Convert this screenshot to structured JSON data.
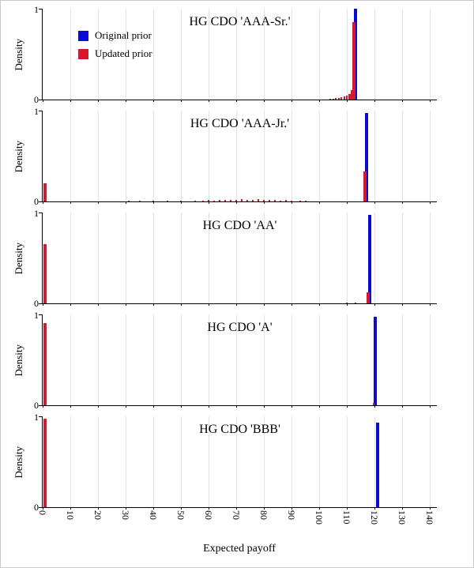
{
  "figure": {
    "ylabel": "Density",
    "xlabel": "Expected payoff",
    "background": "#ffffff",
    "axis_color": "#000000",
    "grid_color": "#e2e2e2",
    "legend": {
      "items": [
        {
          "label": "Original prior",
          "color": "#0a0ad2"
        },
        {
          "label": "Updated prior",
          "color": "#d7182a"
        }
      ]
    }
  },
  "chart_data": {
    "type": "bar",
    "subtype": "density-spike-histogram",
    "xlabel": "Expected payoff",
    "ylabel": "Density",
    "xlim": [
      0,
      140
    ],
    "ylim": [
      0,
      1
    ],
    "x_ticks": [
      0,
      10,
      20,
      30,
      40,
      50,
      60,
      70,
      80,
      90,
      100,
      110,
      120,
      130,
      140
    ],
    "y_ticks": [
      0,
      1
    ],
    "grid": "vertical",
    "legend_position": "top-left-first-panel",
    "panels": [
      {
        "title": "HG CDO 'AAA-Sr.'",
        "show_legend": true,
        "series": [
          {
            "name": "Original prior",
            "color": "#0a0ad2",
            "points": [
              [
                113.2,
                1.0
              ]
            ]
          },
          {
            "name": "Updated prior",
            "color": "#d7182a",
            "points": [
              [
                104,
                0.01
              ],
              [
                105,
                0.012
              ],
              [
                106,
                0.015
              ],
              [
                107,
                0.02
              ],
              [
                108,
                0.025
              ],
              [
                109,
                0.032
              ],
              [
                110,
                0.042
              ],
              [
                111,
                0.06
              ],
              [
                112,
                0.1
              ],
              [
                112.6,
                0.85
              ]
            ]
          }
        ]
      },
      {
        "title": "HG CDO 'AAA-Jr.'",
        "show_legend": false,
        "series": [
          {
            "name": "Original prior",
            "color": "#0a0ad2",
            "points": [
              [
                117.2,
                0.97
              ]
            ]
          },
          {
            "name": "Updated prior",
            "color": "#d7182a",
            "points": [
              [
                0.8,
                0.2
              ],
              [
                31,
                0.008
              ],
              [
                35,
                0.006
              ],
              [
                40,
                0.008
              ],
              [
                45,
                0.01
              ],
              [
                50,
                0.008
              ],
              [
                55,
                0.012
              ],
              [
                58,
                0.01
              ],
              [
                60,
                0.015
              ],
              [
                62,
                0.012
              ],
              [
                64,
                0.018
              ],
              [
                66,
                0.015
              ],
              [
                68,
                0.02
              ],
              [
                70,
                0.018
              ],
              [
                72,
                0.022
              ],
              [
                74,
                0.02
              ],
              [
                76,
                0.018
              ],
              [
                78,
                0.022
              ],
              [
                80,
                0.02
              ],
              [
                82,
                0.018
              ],
              [
                84,
                0.015
              ],
              [
                86,
                0.012
              ],
              [
                88,
                0.015
              ],
              [
                90,
                0.01
              ],
              [
                93,
                0.008
              ],
              [
                95,
                0.006
              ],
              [
                116.5,
                0.33
              ]
            ]
          }
        ]
      },
      {
        "title": "HG CDO 'AA'",
        "show_legend": false,
        "series": [
          {
            "name": "Original prior",
            "color": "#0a0ad2",
            "points": [
              [
                118.2,
                0.97
              ]
            ]
          },
          {
            "name": "Updated prior",
            "color": "#d7182a",
            "points": [
              [
                0.8,
                0.65
              ],
              [
                110,
                0.006
              ],
              [
                113,
                0.008
              ],
              [
                117.6,
                0.12
              ]
            ]
          }
        ]
      },
      {
        "title": "HG CDO 'A'",
        "show_legend": false,
        "series": [
          {
            "name": "Original prior",
            "color": "#0a0ad2",
            "points": [
              [
                120.2,
                0.97
              ]
            ]
          },
          {
            "name": "Updated prior",
            "color": "#d7182a",
            "points": [
              [
                0.8,
                0.9
              ],
              [
                119.6,
                0.03
              ]
            ]
          }
        ]
      },
      {
        "title": "HG CDO 'BBB'",
        "show_legend": false,
        "series": [
          {
            "name": "Original prior",
            "color": "#0a0ad2",
            "points": [
              [
                121.2,
                0.93
              ]
            ]
          },
          {
            "name": "Updated prior",
            "color": "#d7182a",
            "points": [
              [
                0.8,
                0.97
              ]
            ]
          }
        ]
      }
    ]
  }
}
